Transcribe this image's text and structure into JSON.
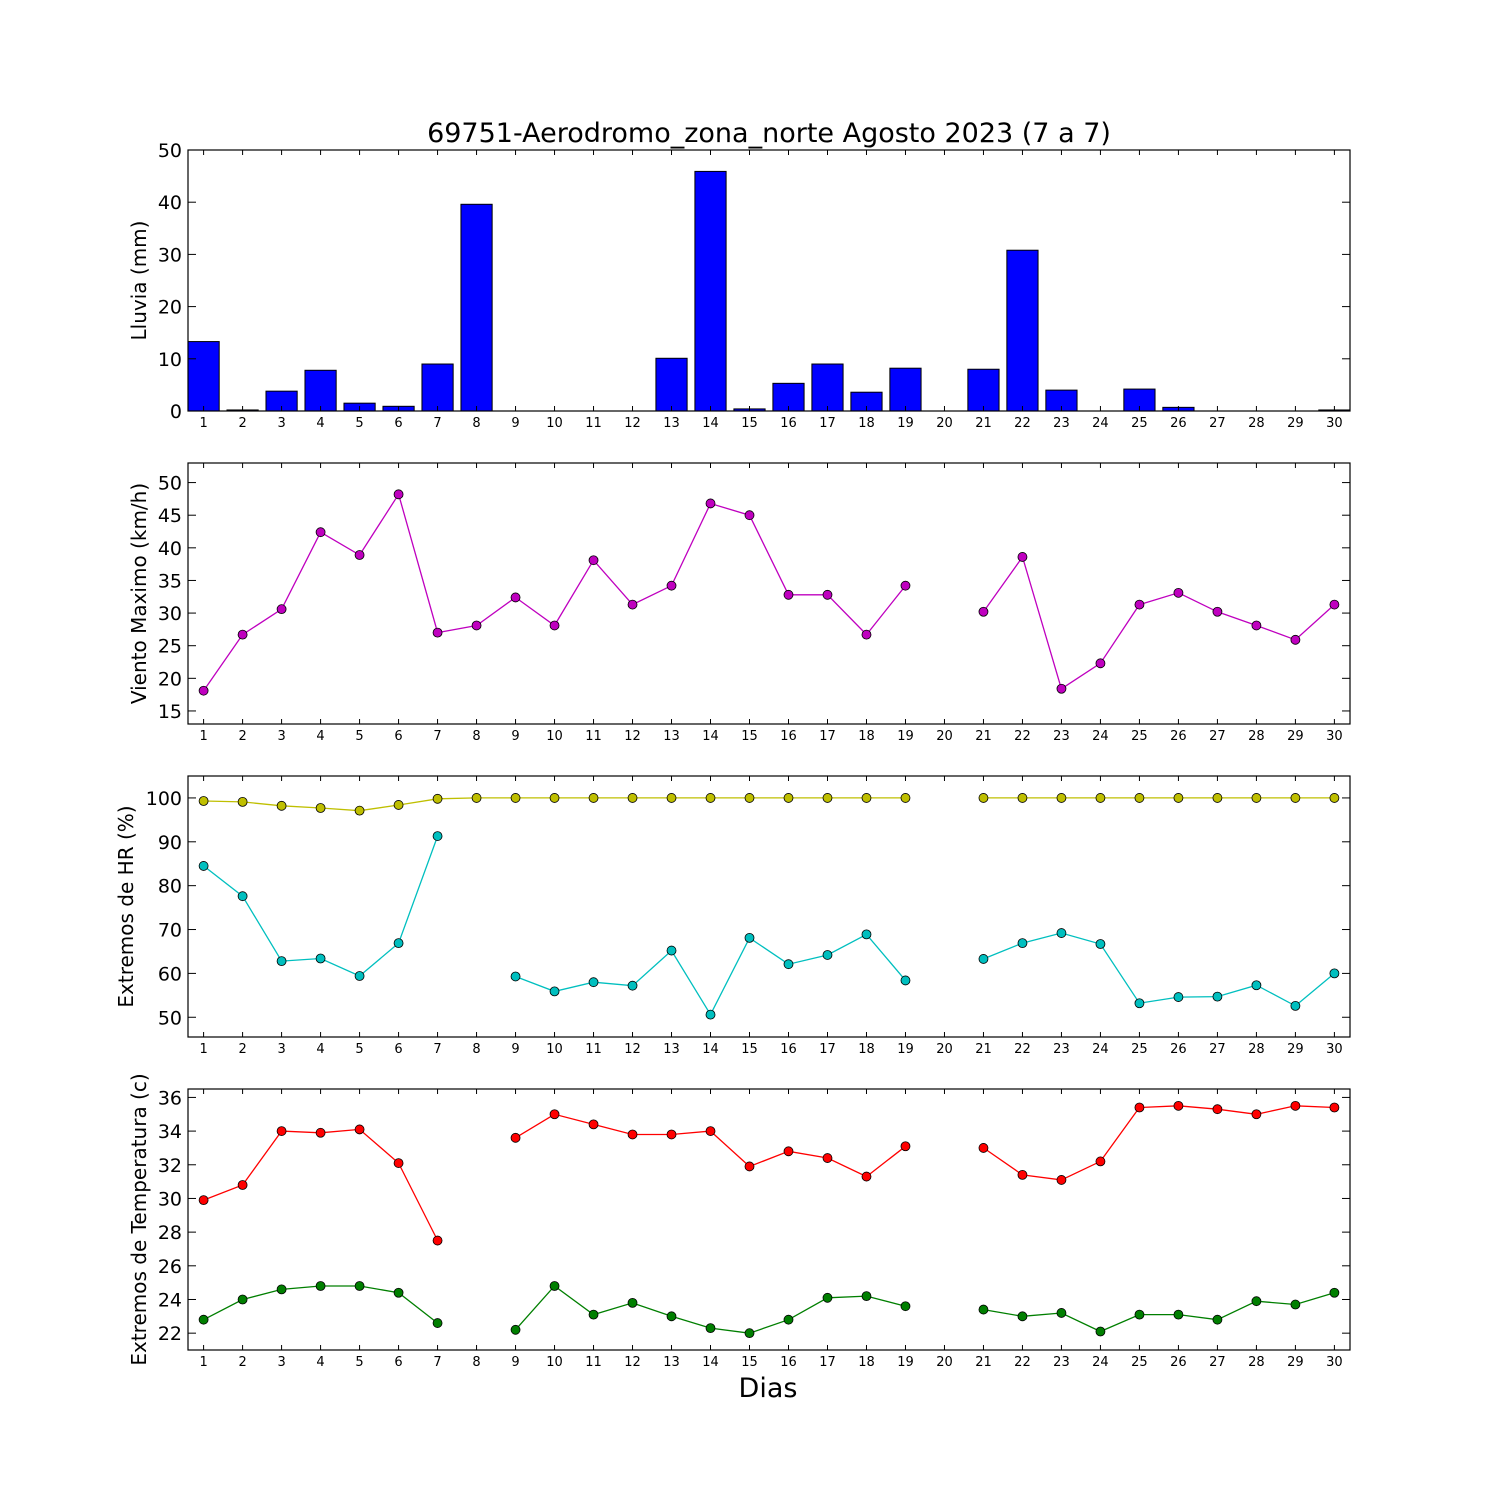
{
  "figure": {
    "title": "69751-Aerodromo_zona_norte Agosto 2023  (7 a 7)",
    "xlabel": "Dias"
  },
  "chart_data": [
    {
      "type": "bar",
      "ylabel": "Lluvia (mm)",
      "ylim": [
        0,
        50
      ],
      "yticks": [
        0,
        10,
        20,
        30,
        40,
        50
      ],
      "categories": [
        "1",
        "2",
        "3",
        "4",
        "5",
        "6",
        "7",
        "8",
        "9",
        "10",
        "11",
        "12",
        "13",
        "14",
        "15",
        "16",
        "17",
        "18",
        "19",
        "20",
        "21",
        "22",
        "23",
        "24",
        "25",
        "26",
        "27",
        "28",
        "29",
        "30"
      ],
      "values": [
        13.3,
        0.2,
        3.8,
        7.8,
        1.5,
        0.9,
        9.0,
        39.6,
        0,
        0,
        0,
        0,
        10.1,
        45.9,
        0.4,
        5.3,
        9.0,
        3.6,
        8.2,
        0,
        8.0,
        30.8,
        4.0,
        0,
        4.2,
        0.7,
        0,
        0,
        0,
        0.2
      ],
      "color": "#0000ff"
    },
    {
      "type": "line",
      "ylabel": "Viento Maximo (km/h)",
      "ylim": [
        13,
        53
      ],
      "yticks": [
        15,
        20,
        25,
        30,
        35,
        40,
        45,
        50
      ],
      "categories": [
        "1",
        "2",
        "3",
        "4",
        "5",
        "6",
        "7",
        "8",
        "9",
        "10",
        "11",
        "12",
        "13",
        "14",
        "15",
        "16",
        "17",
        "18",
        "19",
        "20",
        "21",
        "22",
        "23",
        "24",
        "25",
        "26",
        "27",
        "28",
        "29",
        "30"
      ],
      "series": [
        {
          "values": [
            18.1,
            26.7,
            30.6,
            42.4,
            38.9,
            48.2,
            27.0,
            28.1,
            32.4,
            28.1,
            38.1,
            31.3,
            34.2,
            46.8,
            45.0,
            32.8,
            32.8,
            26.7,
            34.2,
            null,
            30.2,
            38.6,
            18.4,
            22.3,
            31.3,
            33.1,
            30.2,
            28.1,
            25.9,
            31.3
          ],
          "color": "#bf00bf"
        }
      ]
    },
    {
      "type": "line",
      "ylabel": "Extremos de HR (%)",
      "ylim": [
        45.5,
        105
      ],
      "yticks": [
        50,
        60,
        70,
        80,
        90,
        100
      ],
      "categories": [
        "1",
        "2",
        "3",
        "4",
        "5",
        "6",
        "7",
        "8",
        "9",
        "10",
        "11",
        "12",
        "13",
        "14",
        "15",
        "16",
        "17",
        "18",
        "19",
        "20",
        "21",
        "22",
        "23",
        "24",
        "25",
        "26",
        "27",
        "28",
        "29",
        "30"
      ],
      "series": [
        {
          "values": [
            99.3,
            99.1,
            98.2,
            97.7,
            97.1,
            98.4,
            99.8,
            100,
            100,
            100,
            100,
            100,
            100,
            100,
            100,
            100,
            100,
            100,
            100,
            null,
            100,
            100,
            100,
            100,
            100,
            100,
            100,
            100,
            100,
            100
          ],
          "color": "#bfbf00"
        },
        {
          "values": [
            84.5,
            77.6,
            62.8,
            63.4,
            59.4,
            66.9,
            91.3,
            null,
            59.3,
            55.9,
            58.0,
            57.2,
            65.2,
            50.6,
            68.1,
            62.1,
            64.2,
            68.9,
            58.4,
            null,
            63.3,
            66.9,
            69.2,
            66.7,
            53.2,
            54.6,
            54.7,
            57.3,
            52.6,
            60.0
          ],
          "color": "#00bfbf"
        }
      ]
    },
    {
      "type": "line",
      "ylabel": "Extremos de Temperatura (c)",
      "ylim": [
        21,
        36.5
      ],
      "yticks": [
        22,
        24,
        26,
        28,
        30,
        32,
        34,
        36
      ],
      "categories": [
        "1",
        "2",
        "3",
        "4",
        "5",
        "6",
        "7",
        "8",
        "9",
        "10",
        "11",
        "12",
        "13",
        "14",
        "15",
        "16",
        "17",
        "18",
        "19",
        "20",
        "21",
        "22",
        "23",
        "24",
        "25",
        "26",
        "27",
        "28",
        "29",
        "30"
      ],
      "series": [
        {
          "values": [
            29.9,
            30.8,
            34.0,
            33.9,
            34.1,
            32.1,
            27.5,
            null,
            33.6,
            35.0,
            34.4,
            33.8,
            33.8,
            34.0,
            31.9,
            32.8,
            32.4,
            31.3,
            33.1,
            null,
            33.0,
            31.4,
            31.1,
            32.2,
            35.4,
            35.5,
            35.3,
            35.0,
            35.5,
            35.4
          ],
          "color": "#ff0000"
        },
        {
          "values": [
            22.8,
            24.0,
            24.6,
            24.8,
            24.8,
            24.4,
            22.6,
            null,
            22.2,
            24.8,
            23.1,
            23.8,
            23.0,
            22.3,
            22.0,
            22.8,
            24.1,
            24.2,
            23.6,
            null,
            23.4,
            23.0,
            23.2,
            22.1,
            23.1,
            23.1,
            22.8,
            23.9,
            23.7,
            24.4
          ],
          "color": "#007f00"
        }
      ]
    }
  ]
}
